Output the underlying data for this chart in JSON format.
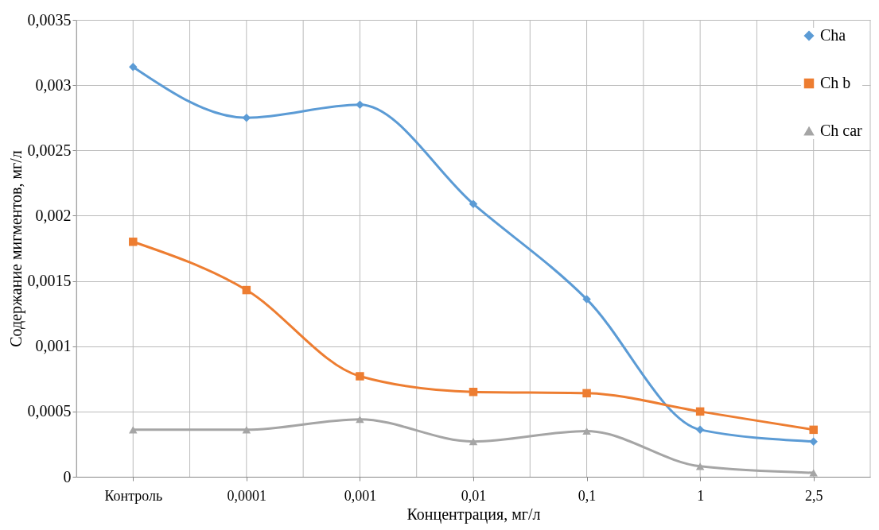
{
  "chart_data": {
    "type": "line",
    "xlabel": "Концентрация, мг/л",
    "ylabel": "Содержание мигментов, мг/л",
    "categories": [
      "Контроль",
      "0,0001",
      "0,001",
      "0,01",
      "0,1",
      "1",
      "2,5"
    ],
    "series": [
      {
        "name": "Cha",
        "color": "#5b9bd5",
        "marker": "diamond",
        "values": [
          0.00314,
          0.00275,
          0.00285,
          0.00209,
          0.00136,
          0.00036,
          0.00027
        ]
      },
      {
        "name": "Ch b",
        "color": "#ed7d31",
        "marker": "square",
        "values": [
          0.0018,
          0.00143,
          0.00077,
          0.00065,
          0.00064,
          0.0005,
          0.00036
        ]
      },
      {
        "name": "Ch car",
        "color": "#a5a5a5",
        "marker": "triangle",
        "values": [
          0.00036,
          0.00036,
          0.00044,
          0.00027,
          0.00035,
          8e-05,
          3e-05
        ]
      }
    ],
    "ylim": [
      0,
      0.0035
    ],
    "yticks": [
      {
        "value": 0,
        "label": "0"
      },
      {
        "value": 0.0005,
        "label": "0,0005"
      },
      {
        "value": 0.001,
        "label": "0,001"
      },
      {
        "value": 0.0015,
        "label": "0,0015"
      },
      {
        "value": 0.002,
        "label": "0,002"
      },
      {
        "value": 0.0025,
        "label": "0,0025"
      },
      {
        "value": 0.003,
        "label": "0,003"
      },
      {
        "value": 0.0035,
        "label": "0,0035"
      }
    ],
    "grid": true,
    "legend": "top right",
    "line_style": "solid"
  }
}
